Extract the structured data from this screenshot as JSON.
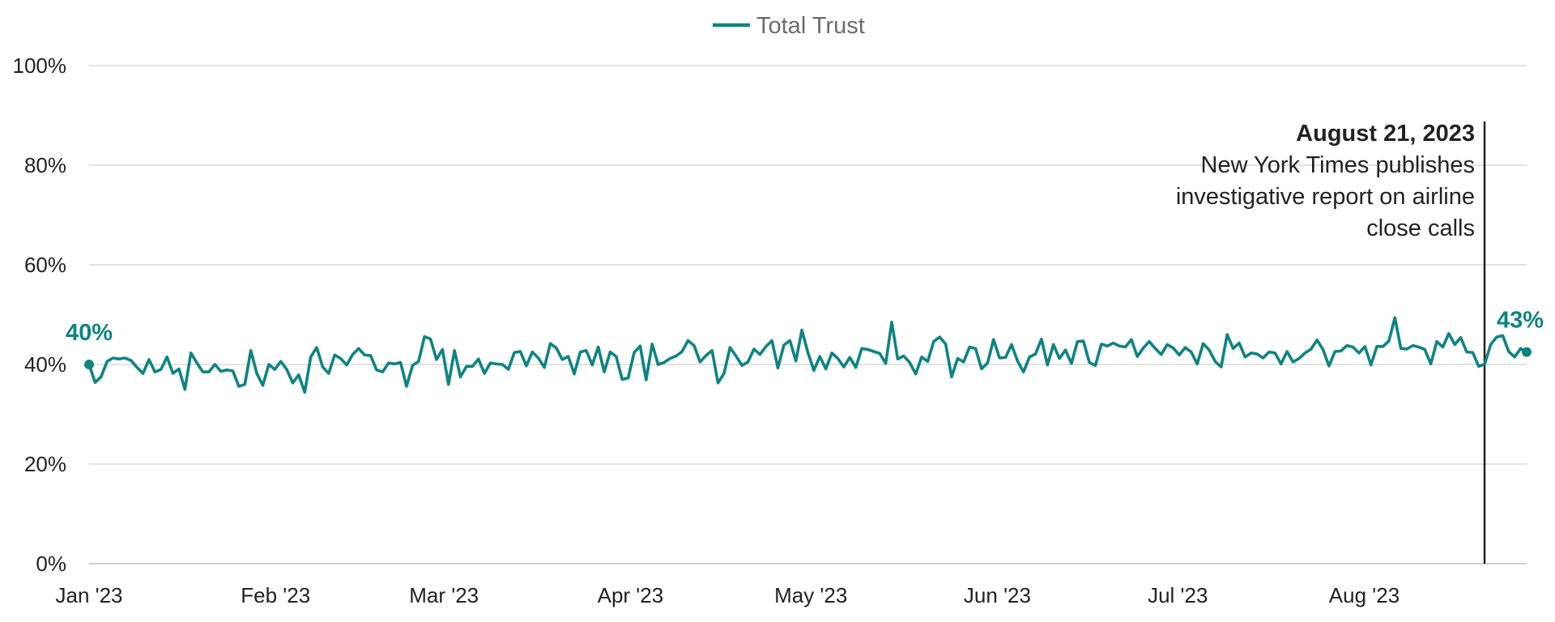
{
  "chart_data": {
    "type": "line",
    "title": "",
    "xlabel": "",
    "ylabel": "",
    "ylim": [
      0,
      100
    ],
    "y_ticks": [
      "0%",
      "20%",
      "40%",
      "60%",
      "80%",
      "100%"
    ],
    "x_ticks": [
      "Jan '23",
      "Feb '23",
      "Mar '23",
      "Apr '23",
      "May '23",
      "Jun '23",
      "Jul '23",
      "Aug '23"
    ],
    "grid": "horizontal",
    "legend_placement": "top-center",
    "colors": {
      "series": "#0e8481",
      "annotation_line": "#222222",
      "grid": "#e3e3e3"
    },
    "series": [
      {
        "name": "Total Trust",
        "x_start": "2023-01-01",
        "x_end": "2023-08-28",
        "values": [
          40.0,
          36.4,
          37.5,
          40.6,
          41.3,
          41.1,
          41.3,
          40.8,
          39.4,
          38.2,
          41.0,
          38.5,
          39.0,
          41.5,
          38.2,
          39.1,
          35.0,
          42.3,
          40.3,
          38.5,
          38.5,
          40.0,
          38.6,
          38.9,
          38.7,
          35.6,
          36.0,
          42.8,
          38.2,
          35.8,
          40.0,
          39.0,
          40.6,
          39.0,
          36.3,
          37.9,
          34.4,
          41.5,
          43.4,
          39.5,
          38.2,
          41.9,
          41.2,
          39.9,
          42.0,
          43.2,
          41.9,
          41.8,
          38.9,
          38.5,
          40.3,
          40.1,
          40.4,
          35.6,
          39.8,
          40.6,
          45.6,
          45.1,
          41.0,
          43.0,
          36.0,
          42.8,
          37.5,
          39.6,
          39.6,
          41.1,
          38.2,
          40.3,
          40.1,
          40.0,
          39.0,
          42.4,
          42.6,
          39.7,
          42.5,
          41.3,
          39.4,
          44.2,
          43.3,
          41.0,
          41.6,
          38.1,
          42.5,
          42.8,
          39.9,
          43.5,
          38.5,
          42.5,
          41.6,
          37.0,
          37.3,
          42.4,
          43.7,
          36.9,
          44.1,
          40.0,
          40.4,
          41.2,
          41.7,
          42.6,
          44.8,
          43.8,
          40.5,
          41.8,
          42.8,
          36.3,
          38.2,
          43.4,
          41.7,
          39.8,
          40.5,
          43.1,
          42.0,
          43.6,
          44.8,
          39.3,
          43.9,
          44.8,
          40.7,
          46.9,
          42.4,
          38.8,
          41.6,
          39.1,
          42.3,
          41.2,
          39.5,
          41.4,
          39.4,
          43.2,
          43.0,
          42.6,
          42.2,
          40.2,
          48.5,
          41.1,
          41.7,
          40.4,
          38.1,
          41.5,
          40.6,
          44.6,
          45.5,
          44.1,
          37.5,
          41.2,
          40.5,
          43.5,
          43.2,
          39.1,
          40.3,
          45.0,
          41.3,
          41.4,
          44.0,
          40.7,
          38.5,
          41.5,
          42.1,
          45.1,
          39.9,
          44.0,
          41.2,
          42.9,
          40.2,
          44.6,
          44.7,
          40.4,
          39.8,
          44.1,
          43.7,
          44.3,
          43.7,
          43.5,
          45.0,
          41.6,
          43.3,
          44.6,
          43.2,
          42.0,
          44.0,
          43.3,
          41.9,
          43.4,
          42.5,
          40.1,
          44.2,
          42.9,
          40.6,
          39.5,
          46.0,
          43.2,
          44.3,
          41.5,
          42.3,
          42.1,
          41.3,
          42.5,
          42.3,
          40.1,
          42.6,
          40.5,
          41.2,
          42.3,
          43.1,
          44.9,
          43.0,
          39.7,
          42.6,
          42.7,
          43.8,
          43.5,
          42.3,
          43.6,
          39.9,
          43.6,
          43.6,
          44.7,
          49.4,
          43.2,
          43.1,
          43.8,
          43.5,
          43.0,
          40.1,
          44.6,
          43.5,
          46.2,
          44.0,
          45.4,
          42.5,
          42.4,
          39.6,
          40.1,
          44.0,
          45.5,
          45.8,
          42.6,
          41.5,
          43.2,
          42.5
        ]
      }
    ],
    "data_labels": {
      "start": "40%",
      "end": "43%"
    },
    "annotation": {
      "date": "2023-08-21",
      "title": "August 21, 2023",
      "lines": [
        "New York Times publishes",
        "investigative report on airline",
        "close calls"
      ]
    }
  }
}
